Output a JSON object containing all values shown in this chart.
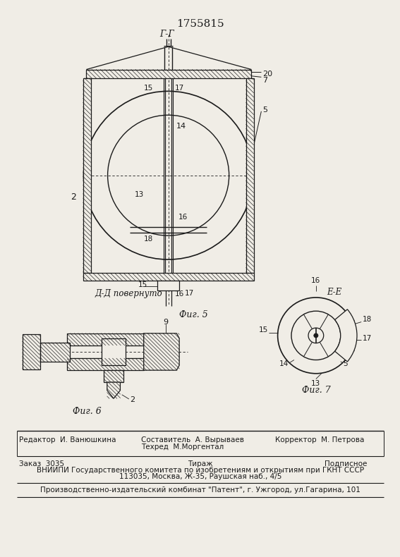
{
  "patent_number": "1755815",
  "background_color": "#f0ede6",
  "line_color": "#1a1a1a",
  "fig5_label": "Фиг. 5",
  "fig6_label": "Фиг. 6",
  "fig7_label": "Фиг. 7",
  "section_gg": "Г-Г",
  "section_dd": "Д-Д повернуто",
  "section_ee": "Е-Е",
  "footer_line1_left": "Редактор  И. Ванюшкина",
  "footer_line1_center": "Составитель  А. Вырываев",
  "footer_line1_right": "Корректор  М. Петрова",
  "footer_line2_center": "Техред  М.Моргентал",
  "footer_order": "Заказ  3035",
  "footer_tirazh": "Тираж",
  "footer_podpisnoe": "Подписное",
  "footer_vniipи": "ВНИИПИ Государственного комитета по изобретениям и открытиям при ГКНТ СССР",
  "footer_address": "113035, Москва, Ж-35, Раушская наб., 4/5",
  "footer_kombinat": "Производственно-издательский комбинат \"Патент\", г. Ужгород, ул.Гагарина, 101"
}
